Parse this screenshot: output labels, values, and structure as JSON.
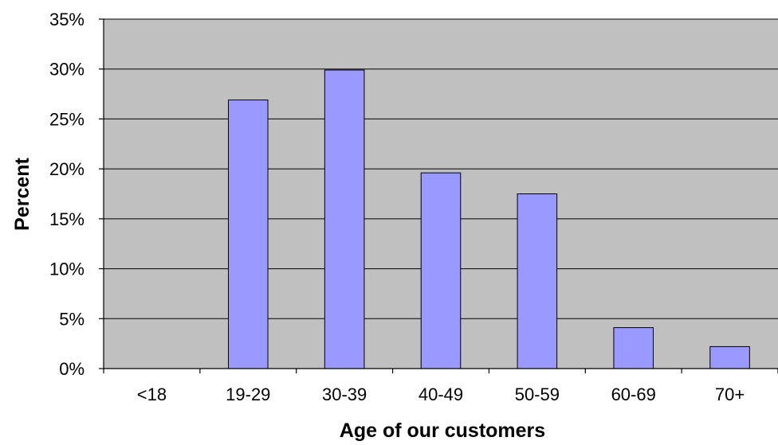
{
  "chart_data": {
    "type": "bar",
    "title": "",
    "xlabel": "Age of our customers",
    "ylabel": "Percent",
    "categories": [
      "<18",
      "19-29",
      "30-39",
      "40-49",
      "50-59",
      "60-69",
      "70+"
    ],
    "values": [
      0,
      26.9,
      29.9,
      19.6,
      17.5,
      4.1,
      2.2
    ],
    "ylim": [
      0,
      35
    ],
    "y_ticks": [
      0,
      5,
      10,
      15,
      20,
      25,
      30,
      35
    ],
    "y_tick_labels": [
      "0%",
      "5%",
      "10%",
      "15%",
      "20%",
      "25%",
      "30%",
      "35%"
    ],
    "grid": true,
    "legend": "none",
    "colors": {
      "bar_fill": "#9999ff",
      "bar_stroke": "#000000",
      "plot_background": "#c0c0c0",
      "gridline": "#000000",
      "axis": "#000000"
    }
  }
}
